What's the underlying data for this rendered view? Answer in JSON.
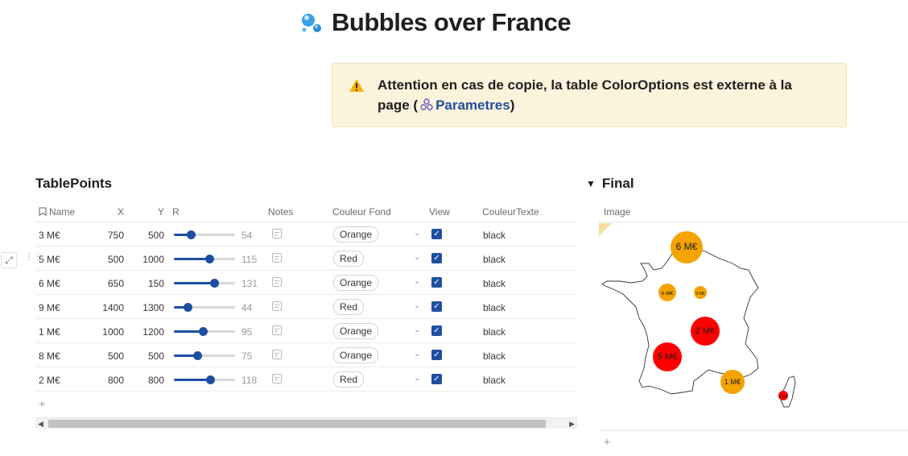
{
  "page": {
    "title": "Bubbles over France",
    "title_icon": "bubbles-emoji"
  },
  "callout": {
    "icon": "warning-icon",
    "text": "Attention en cas de copie, la table ColorOptions est externe à la page (",
    "link": "Parametres",
    "suffix": ")"
  },
  "table": {
    "title": "TablePoints",
    "columns": [
      "Name",
      "X",
      "Y",
      "R",
      "Notes",
      "Couleur Fond",
      "View",
      "CouleurTexte"
    ],
    "r_max": 200,
    "rows": [
      {
        "name": "3 M€",
        "x": "750",
        "y": "500",
        "r": "54",
        "couleur_fond": "Orange",
        "view": true,
        "couleur_texte": "black"
      },
      {
        "name": "5 M€",
        "x": "500",
        "y": "1000",
        "r": "115",
        "couleur_fond": "Red",
        "view": true,
        "couleur_texte": "black"
      },
      {
        "name": "6 M€",
        "x": "650",
        "y": "150",
        "r": "131",
        "couleur_fond": "Orange",
        "view": true,
        "couleur_texte": "black"
      },
      {
        "name": "9 M€",
        "x": "1400",
        "y": "1300",
        "r": "44",
        "couleur_fond": "Red",
        "view": true,
        "couleur_texte": "black"
      },
      {
        "name": "1 M€",
        "x": "1000",
        "y": "1200",
        "r": "95",
        "couleur_fond": "Orange",
        "view": true,
        "couleur_texte": "black"
      },
      {
        "name": "8 M€",
        "x": "500",
        "y": "500",
        "r": "75",
        "couleur_fond": "Orange",
        "view": true,
        "couleur_texte": "black"
      },
      {
        "name": "2 M€",
        "x": "800",
        "y": "800",
        "r": "118",
        "couleur_fond": "Red",
        "view": true,
        "couleur_texte": "black"
      }
    ],
    "add_label": "+"
  },
  "final": {
    "title": "Final",
    "column": "Image",
    "add_label": "+"
  },
  "map_bubbles": [
    {
      "label": "6 M€",
      "color": "#f5a300"
    },
    {
      "label": "8 M€",
      "color": "#f5a300"
    },
    {
      "label": "3 M€",
      "color": "#f5a300"
    },
    {
      "label": "2 M€",
      "color": "#ff0000"
    },
    {
      "label": "5 M€",
      "color": "#ff0000"
    },
    {
      "label": "1 M€",
      "color": "#f5a300"
    },
    {
      "label": "9 M€",
      "color": "#ff0000"
    }
  ],
  "colors": {
    "orange": "#f5a300",
    "red": "#ff0000",
    "accent": "#1e4fa1",
    "callout_bg": "#fbf3db"
  }
}
